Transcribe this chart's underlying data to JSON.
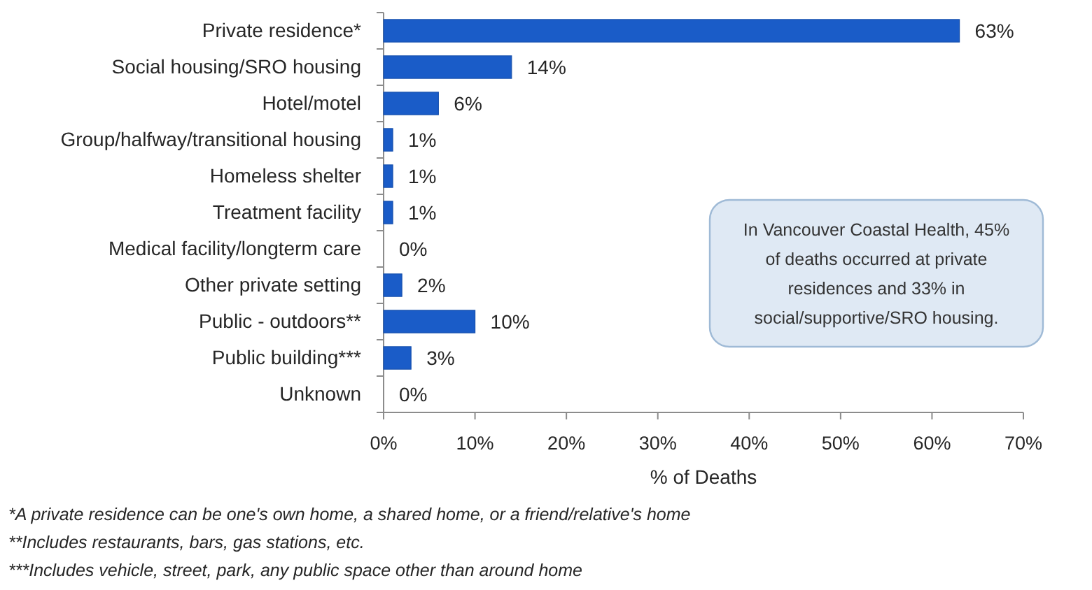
{
  "chart_data": {
    "type": "bar",
    "orientation": "horizontal",
    "categories": [
      "Private residence*",
      "Social housing/SRO housing",
      "Hotel/motel",
      "Group/halfway/transitional housing",
      "Homeless shelter",
      "Treatment facility",
      "Medical facility/longterm care",
      "Other private setting",
      "Public - outdoors**",
      "Public building***",
      "Unknown"
    ],
    "values": [
      63,
      14,
      6,
      1,
      1,
      1,
      0,
      2,
      10,
      3,
      0
    ],
    "value_labels": [
      "63%",
      "14%",
      "6%",
      "1%",
      "1%",
      "1%",
      "0%",
      "2%",
      "10%",
      "3%",
      "0%"
    ],
    "color": "#1a5cc8",
    "xlabel": "% of Deaths",
    "xlim": [
      0,
      70
    ],
    "xticks": [
      {
        "value": 0,
        "label": "0%"
      },
      {
        "value": 10,
        "label": "10%"
      },
      {
        "value": 20,
        "label": "20%"
      },
      {
        "value": 30,
        "label": "30%"
      },
      {
        "value": 40,
        "label": "40%"
      },
      {
        "value": 50,
        "label": "50%"
      },
      {
        "value": 60,
        "label": "60%"
      },
      {
        "value": 70,
        "label": "70%"
      }
    ],
    "annotations": [
      "In Vancouver Coastal Health, 45% of deaths occurred at private residences and 33% in social/supportive/SRO housing.",
      "*A private residence can be one's own home, a shared home, or a friend/relative's home",
      "**Includes restaurants, bars, gas stations, etc.",
      "***Includes vehicle, street, park, any public space other than around home"
    ]
  }
}
